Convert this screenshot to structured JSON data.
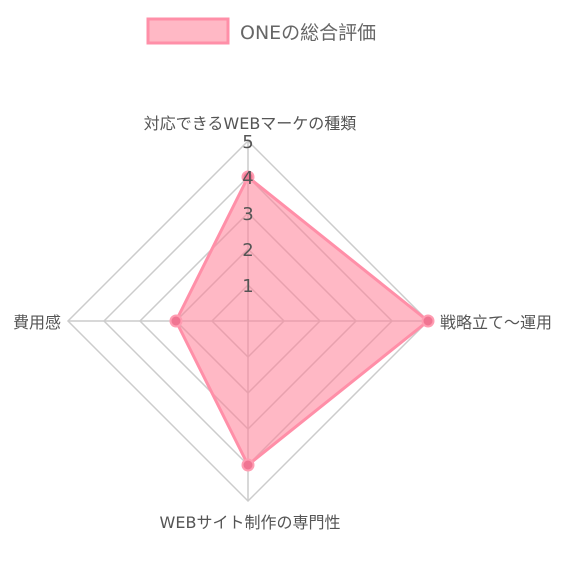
{
  "chart_data": {
    "type": "radar",
    "axes": [
      "対応できるWEBマーケの種類",
      "戦略立て〜運用",
      "WEBサイト制作の専門性",
      "費用感"
    ],
    "series": [
      {
        "name": "ONEの総合評価",
        "values": [
          4,
          5,
          4,
          2
        ]
      }
    ],
    "r_range": [
      0,
      5
    ],
    "ticks": [
      "1",
      "2",
      "3",
      "4",
      "5"
    ],
    "legend_position": "top",
    "colors": {
      "fill": "rgba(255, 125, 150, 0.55)",
      "stroke": "#ff8fa8",
      "point": "#f07592",
      "grid": "#cccccc",
      "text": "#555555"
    }
  }
}
